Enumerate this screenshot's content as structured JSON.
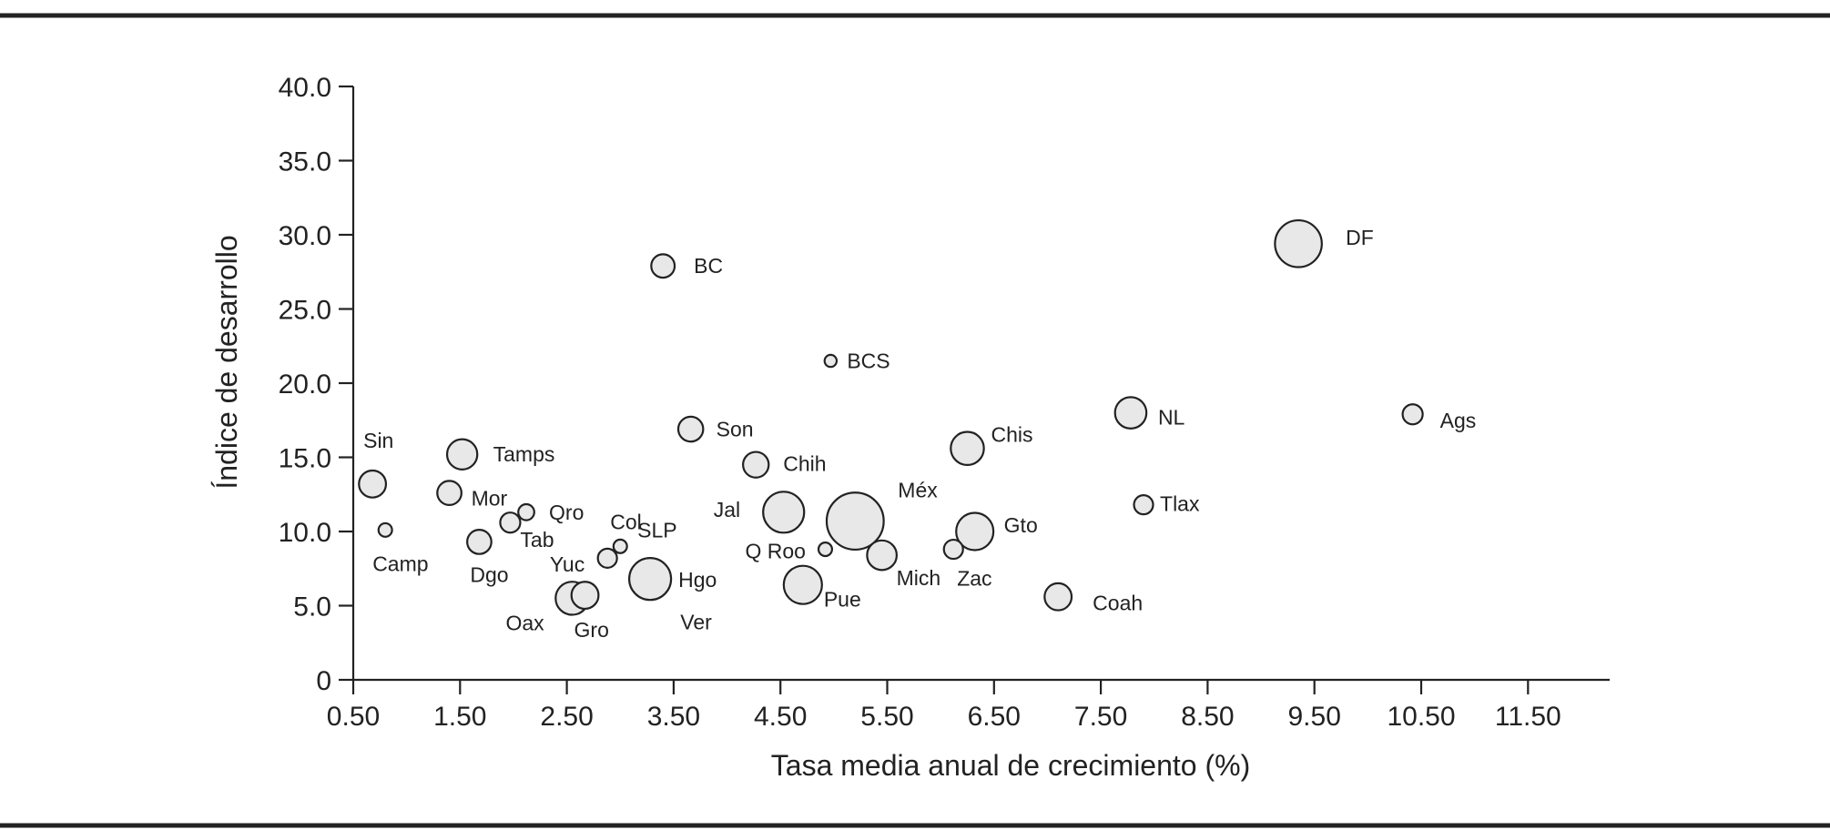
{
  "chart_data": {
    "type": "scatter",
    "variant": "bubble",
    "title": "",
    "xlabel": "Tasa media anual de crecimiento (%)",
    "ylabel": "Índice de desarrollo",
    "xlim": [
      0.5,
      12.0
    ],
    "ylim": [
      0,
      40
    ],
    "x_ticks": [
      "0.50",
      "1.50",
      "2.50",
      "3.50",
      "4.50",
      "5.50",
      "6.50",
      "7.50",
      "8.50",
      "9.50",
      "10.50",
      "11.50"
    ],
    "y_ticks": [
      "0",
      "5.0",
      "10.0",
      "15.0",
      "20.0",
      "25.0",
      "30.0",
      "35.0",
      "40.0"
    ],
    "grid": false,
    "legend": "none",
    "colors": {
      "bubble_fill": "#e8e8e8",
      "stroke": "#222222"
    },
    "points": [
      {
        "label": "DF",
        "x": 9.35,
        "y": 29.4,
        "size": 6.0
      },
      {
        "label": "BC",
        "x": 3.4,
        "y": 27.9,
        "size": 1.5
      },
      {
        "label": "BCS",
        "x": 4.97,
        "y": 21.5,
        "size": 0.4
      },
      {
        "label": "NL",
        "x": 7.78,
        "y": 18.0,
        "size": 2.7
      },
      {
        "label": "Ags",
        "x": 10.42,
        "y": 17.9,
        "size": 1.1
      },
      {
        "label": "Son",
        "x": 3.66,
        "y": 16.9,
        "size": 1.7
      },
      {
        "label": "Chis",
        "x": 6.25,
        "y": 15.6,
        "size": 3.0
      },
      {
        "label": "Tamps",
        "x": 1.52,
        "y": 15.2,
        "size": 2.5
      },
      {
        "label": "Chih",
        "x": 4.27,
        "y": 14.5,
        "size": 1.8
      },
      {
        "label": "Sin",
        "x": 0.68,
        "y": 13.2,
        "size": 2.0
      },
      {
        "label": "Mor",
        "x": 1.4,
        "y": 12.6,
        "size": 1.6
      },
      {
        "label": "Tlax",
        "x": 7.9,
        "y": 11.8,
        "size": 1.0
      },
      {
        "label": "Jal",
        "x": 4.53,
        "y": 11.3,
        "size": 4.6
      },
      {
        "label": "Qro",
        "x": 2.12,
        "y": 11.3,
        "size": 0.7
      },
      {
        "label": "Méx",
        "x": 5.2,
        "y": 10.7,
        "size": 8.9
      },
      {
        "label": "Tab",
        "x": 1.97,
        "y": 10.6,
        "size": 1.1
      },
      {
        "label": "Gto",
        "x": 6.32,
        "y": 10.0,
        "size": 3.8
      },
      {
        "label": "Camp",
        "x": 0.8,
        "y": 10.1,
        "size": 0.5
      },
      {
        "label": "Dgo",
        "x": 1.68,
        "y": 9.3,
        "size": 1.6
      },
      {
        "label": "Col",
        "x": 3.0,
        "y": 9.0,
        "size": 0.5
      },
      {
        "label": "Q Roo",
        "x": 4.92,
        "y": 8.8,
        "size": 0.5
      },
      {
        "label": "Zac",
        "x": 6.12,
        "y": 8.8,
        "size": 1.0
      },
      {
        "label": "Mich",
        "x": 5.45,
        "y": 8.4,
        "size": 2.4
      },
      {
        "label": "SLP",
        "x": 2.88,
        "y": 8.2,
        "size": 1.0
      },
      {
        "label": "Hgo",
        "x": 3.28,
        "y": 6.8,
        "size": 4.8
      },
      {
        "label": "Pue",
        "x": 4.71,
        "y": 6.4,
        "size": 4.0
      },
      {
        "label": "Coah",
        "x": 7.1,
        "y": 5.6,
        "size": 2.0
      },
      {
        "label": "Gro",
        "x": 2.67,
        "y": 5.7,
        "size": 2.0
      },
      {
        "label": "Oax",
        "x": 2.55,
        "y": 5.5,
        "size": 3.0
      },
      {
        "label": "Yuc",
        "x": 2.4,
        "y": 7.8,
        "size": 0.0
      },
      {
        "label": "Ver",
        "x": 3.35,
        "y": 3.9,
        "size": 0.0
      }
    ]
  }
}
